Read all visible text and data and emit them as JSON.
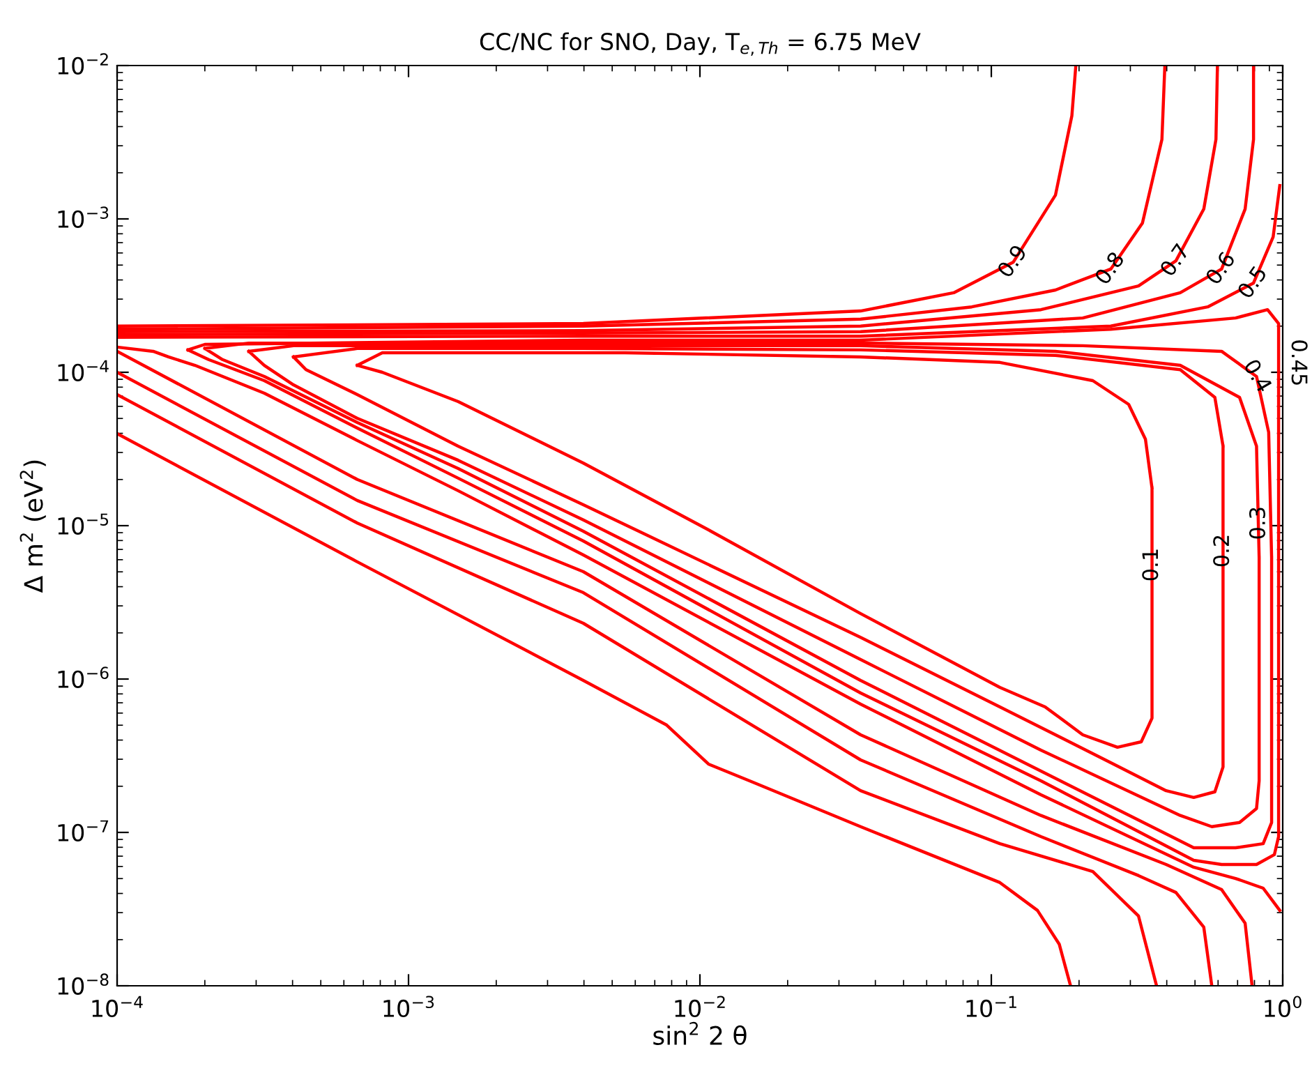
{
  "chart_data": {
    "type": "line",
    "title": "CC/NC for SNO, Day, T$_{e,Th}$ = 6.75 MeV",
    "xlabel": "sin$^{2}$ 2 θ",
    "ylabel": "Δ m$^{2}$ (eV$^{2}$)",
    "log": "xy",
    "line_style": "solid",
    "xlim": [
      0.0001,
      1
    ],
    "ylim": [
      1e-08,
      0.01
    ],
    "xticks": [
      {
        "value": 0.0001,
        "label": "10$^{−4}$"
      },
      {
        "value": 0.001,
        "label": "10$^{−3}$"
      },
      {
        "value": 0.01,
        "label": "10$^{−2}$"
      },
      {
        "value": 0.1,
        "label": "10$^{−1}$"
      },
      {
        "value": 1,
        "label": "10$^{0}$"
      }
    ],
    "yticks": [
      {
        "value": 1e-08,
        "label": "10$^{−8}$"
      },
      {
        "value": 1e-07,
        "label": "10$^{−7}$"
      },
      {
        "value": 1e-06,
        "label": "10$^{−6}$"
      },
      {
        "value": 1e-05,
        "label": "10$^{−5}$"
      },
      {
        "value": 0.0001,
        "label": "10$^{−4}$"
      },
      {
        "value": 0.001,
        "label": "10$^{−3}$"
      },
      {
        "value": 0.01,
        "label": "10$^{−2}$"
      }
    ],
    "series": [
      {
        "color": "#ff0000",
        "x": [
          0.000667,
          0.000813,
          0.00148,
          0.00553,
          0.0356,
          0.107,
          0.223,
          0.296,
          0.338,
          0.356,
          null,
          0.000667,
          0.000813,
          0.00148,
          0.00398,
          0.0107,
          0.0356,
          0.107,
          0.153,
          0.206,
          0.271,
          0.327,
          0.356,
          0.356,
          0.356
        ],
        "values": [
          0.000111,
          0.000134,
          0.000134,
          0.000134,
          0.000126,
          0.000116,
          8.82e-05,
          6.18e-05,
          3.66e-05,
          1.76e-05,
          null,
          0.000111,
          0.0001,
          6.44e-05,
          2.56e-05,
          9.39e-06,
          2.67e-06,
          8.82e-07,
          6.58e-07,
          4.33e-07,
          3.59e-07,
          3.9e-07,
          5.56e-07,
          2.17e-06,
          1.76e-05
        ]
      },
      {
        "color": "#ff0000",
        "x": [
          0.000403,
          0.000667,
          0.00398,
          0.0356,
          0.166,
          0.445,
          0.585,
          0.624,
          null,
          0.000403,
          0.000445,
          0.000667,
          0.00148,
          0.00398,
          0.0356,
          0.107,
          0.257,
          0.398,
          0.495,
          0.585,
          0.624,
          0.624,
          0.624
        ],
        "values": [
          0.000126,
          0.000143,
          0.000143,
          0.00014,
          0.000129,
          0.000104,
          6.86e-05,
          3.3e-05,
          null,
          0.000126,
          0.000104,
          7.16e-05,
          3.3e-05,
          1.37e-05,
          1.87e-06,
          6.58e-07,
          2.85e-07,
          1.87e-07,
          1.69e-07,
          1.84e-07,
          2.67e-07,
          2.17e-06,
          3.3e-05
        ]
      },
      {
        "color": "#ff0000",
        "x": [
          0.000283,
          0.000403,
          0.00398,
          0.0356,
          0.166,
          0.445,
          0.711,
          0.813,
          0.83,
          null,
          0.000283,
          0.00032,
          0.000403,
          0.000667,
          0.00148,
          0.00398,
          0.0356,
          0.148,
          0.445,
          0.571,
          0.711,
          0.813,
          0.83,
          0.83
        ],
        "values": [
          0.000137,
          0.000149,
          0.000149,
          0.000149,
          0.000137,
          0.000111,
          6.86e-05,
          3.3e-05,
          6.18e-06,
          null,
          0.000137,
          0.000111,
          8.28e-05,
          5.01e-05,
          2.67e-05,
          1.09e-05,
          1.34e-06,
          3.44e-07,
          1.29e-07,
          1.09e-07,
          1.16e-07,
          1.43e-07,
          2.17e-07,
          6.18e-06
        ]
      },
      {
        "color": "#ff0000",
        "x": [
          0.0002,
          0.000283,
          0.00398,
          0.0356,
          0.206,
          0.617,
          0.813,
          0.895,
          0.916,
          null,
          0.0002,
          0.00023,
          0.00032,
          0.000667,
          0.00148,
          0.00398,
          0.0356,
          0.148,
          0.495,
          0.689,
          0.857,
          0.916,
          0.916
        ],
        "values": [
          0.000143,
          0.000155,
          0.000155,
          0.000155,
          0.000149,
          0.000137,
          9.39e-05,
          4.06e-05,
          6.18e-06,
          null,
          0.000143,
          0.000121,
          9.39e-05,
          4.71e-05,
          2.36e-05,
          9.2e-06,
          9.8e-07,
          2.51e-07,
          7.94e-08,
          7.94e-08,
          8.45e-08,
          1.16e-07,
          6.18e-06
        ]
      },
      {
        "color": "#ff0000",
        "x": [
          0.000175,
          0.0002,
          0.00398,
          0.0356,
          0.257,
          0.689,
          0.887,
          0.968,
          0.968,
          null,
          0.000175,
          0.000206,
          0.00032,
          0.000667,
          0.00148,
          0.00398,
          0.0356,
          0.148,
          0.495,
          0.617,
          0.813,
          0.936,
          0.968,
          0.968
        ],
        "values": [
          0.00014,
          0.000152,
          0.000162,
          0.000162,
          0.000191,
          0.000226,
          0.000256,
          0.000208,
          6.18e-06,
          null,
          0.00014,
          0.000121,
          8.82e-05,
          4.33e-05,
          2.04e-05,
          7.94e-06,
          8.11e-07,
          2.17e-07,
          6.58e-08,
          6.18e-08,
          6.18e-08,
          7.16e-08,
          9.39e-08,
          6.18e-06
        ]
      },
      {
        "color": "#ff0000",
        "x": [
          0.0001,
          0.00398,
          0.0356,
          0.257,
          0.553,
          0.794,
          0.927,
          0.977
        ],
        "values": [
          0.000169,
          0.000172,
          0.000172,
          0.0002,
          0.000267,
          0.000382,
          0.000762,
          0.00165
        ]
      },
      {
        "color": "#ff0000",
        "x": [
          0.0001,
          0.000133,
          0.00015,
          0.000185,
          0.00032,
          0.000667,
          0.00148,
          0.00398,
          0.0356,
          0.148,
          0.495,
          0.689,
          0.857,
          0.977
        ],
        "values": [
          0.000146,
          0.000137,
          0.000126,
          0.000111,
          7.31e-05,
          3.59e-05,
          1.69e-05,
          6.44e-06,
          6.86e-07,
          1.76e-07,
          5.93e-08,
          5.01e-08,
          4.33e-08,
          3.1e-08
        ]
      },
      {
        "color": "#ff0000",
        "x": [
          0.0001,
          0.00398,
          0.0356,
          0.206,
          0.445,
          0.617,
          0.743,
          0.794,
          0.794
        ],
        "values": [
          0.000176,
          0.00018,
          0.000184,
          0.000226,
          0.00033,
          0.000471,
          0.00116,
          0.0033,
          0.01
        ]
      },
      {
        "color": "#ff0000",
        "x": [
          0.0001,
          0.000667,
          0.00398,
          0.0356,
          0.148,
          0.398,
          0.617,
          0.743,
          0.785
        ],
        "values": [
          0.000137,
          2e-05,
          5.01e-06,
          4.33e-07,
          1.29e-07,
          6.18e-08,
          4.24e-08,
          2.56e-08,
          1e-08
        ]
      },
      {
        "color": "#ff0000",
        "x": [
          0.0001,
          0.00398,
          0.0356,
          0.148,
          0.32,
          0.43,
          0.536,
          0.59,
          0.597
        ],
        "values": [
          0.000184,
          0.000187,
          0.0002,
          0.000256,
          0.000366,
          0.000533,
          0.00116,
          0.0033,
          0.01
        ]
      },
      {
        "color": "#ff0000",
        "x": [
          0.0001,
          0.000667,
          0.00398,
          0.0356,
          0.148,
          0.32,
          0.43,
          0.536,
          0.571
        ],
        "values": [
          0.0001,
          1.46e-05,
          3.66e-06,
          2.97e-07,
          9.39e-08,
          5.23e-08,
          4.06e-08,
          2.41e-08,
          1e-08
        ]
      },
      {
        "color": "#ff0000",
        "x": [
          0.0001,
          0.00398,
          0.0356,
          0.0857,
          0.166,
          0.257,
          0.33,
          0.385,
          0.394
        ],
        "values": [
          0.000191,
          0.0002,
          0.000222,
          0.000267,
          0.000344,
          0.000471,
          0.000939,
          0.0033,
          0.01
        ]
      },
      {
        "color": "#ff0000",
        "x": [
          0.0001,
          0.000667,
          0.00398,
          0.0356,
          0.107,
          0.223,
          0.32,
          0.369
        ],
        "values": [
          7.16e-05,
          1.04e-05,
          2.31e-06,
          1.87e-07,
          8.45e-08,
          5.56e-08,
          2.85e-08,
          1e-08
        ]
      },
      {
        "color": "#ff0000",
        "x": [
          0.0001,
          0.00398,
          0.0356,
          0.0743,
          0.119,
          0.166,
          0.189,
          0.195
        ],
        "values": [
          0.0002,
          0.000208,
          0.000251,
          0.00033,
          0.000523,
          0.00143,
          0.00471,
          0.01
        ]
      },
      {
        "color": "#ff0000",
        "x": [
          0.0001,
          0.000667,
          0.00398,
          0.00769,
          0.0107,
          0.0148,
          0.0356,
          0.107,
          0.144,
          0.171,
          0.187
        ],
        "values": [
          3.98e-05,
          5.81e-06,
          9.8e-07,
          5.01e-07,
          2.79e-07,
          2.17e-07,
          1.09e-07,
          4.71e-08,
          3.1e-08,
          1.87e-08,
          1e-08
        ]
      }
    ],
    "annotations": [
      {
        "text": "0.9",
        "x": 0.119,
        "y": 0.000523
      },
      {
        "text": "0.8",
        "x": 0.257,
        "y": 0.000471
      },
      {
        "text": "0.7",
        "x": 0.43,
        "y": 0.000533
      },
      {
        "text": "0.6",
        "x": 0.617,
        "y": 0.000471
      },
      {
        "text": "0.5",
        "x": 0.794,
        "y": 0.000382
      },
      "0.45",
      {
        "text": "0.4",
        "x": 0.813,
        "y": 9.39e-05
      },
      {
        "text": "0.3",
        "x": 0.83,
        "y": 1.04e-05
      },
      {
        "text": "0.2",
        "x": 0.624,
        "y": 6.86e-06
      },
      {
        "text": "0.1",
        "x": 0.356,
        "y": 5.56e-06
      }
    ]
  }
}
